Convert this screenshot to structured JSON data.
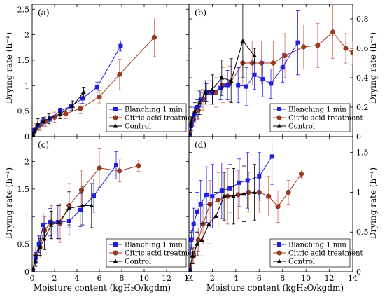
{
  "figure": {
    "y_axis_label": "Drying rate (h⁻¹)",
    "x_axis_label": "Moisture content (kgH₂O/kgdm)",
    "legend_entries": [
      "Blanching 1 min",
      "Citric acid treatment",
      "Control"
    ],
    "colors": {
      "blanching": "#1f1fe0",
      "citric": "#a33a1e",
      "citric_err": "#d26a5a",
      "control": "#000000"
    }
  },
  "chart_data": [
    {
      "type": "line",
      "panel": "(a)",
      "y_side": "left",
      "xlim": [
        0,
        14
      ],
      "ylim": [
        0,
        2.6
      ],
      "xticks": [
        "0",
        "2",
        "4",
        "6",
        "8",
        "10",
        "12",
        "14"
      ],
      "yticks": [
        "0",
        "0.5",
        "1",
        "1.5",
        "2",
        "2.5"
      ],
      "legend_position": "lower-right",
      "series": [
        {
          "name": "Blanching 1 min",
          "key": "blanching",
          "x": [
            0.05,
            0.2,
            0.5,
            1.0,
            1.6,
            2.5,
            3.5,
            4.5,
            5.8,
            7.9
          ],
          "y": [
            0.02,
            0.12,
            0.22,
            0.3,
            0.35,
            0.5,
            0.6,
            0.75,
            0.97,
            1.78
          ],
          "err": [
            0.02,
            0.04,
            0.05,
            0.05,
            0.05,
            0.06,
            0.08,
            0.1,
            0.1,
            0.1
          ]
        },
        {
          "name": "Citric acid treatment",
          "key": "citric",
          "x": [
            0.05,
            0.3,
            0.7,
            1.2,
            2.0,
            3.0,
            4.3,
            6.0,
            7.8,
            10.9
          ],
          "y": [
            0.03,
            0.15,
            0.22,
            0.3,
            0.38,
            0.45,
            0.55,
            0.78,
            1.22,
            1.95
          ],
          "err": [
            0.03,
            0.1,
            0.1,
            0.1,
            0.1,
            0.1,
            0.1,
            0.12,
            0.3,
            0.38
          ]
        },
        {
          "name": "Control",
          "key": "control",
          "x": [
            0.05,
            0.2,
            0.5,
            1.0,
            1.5,
            2.5,
            3.6,
            4.6
          ],
          "y": [
            0.03,
            0.1,
            0.25,
            0.3,
            0.35,
            0.45,
            0.6,
            0.87
          ],
          "err": [
            0.02,
            0.05,
            0.1,
            0.08,
            0.1,
            0.1,
            0.1,
            0.1
          ]
        }
      ]
    },
    {
      "type": "line",
      "panel": "(b)",
      "y_side": "right",
      "xlim": [
        0,
        14
      ],
      "ylim": [
        0,
        0.9
      ],
      "xticks": [
        "0",
        "2",
        "4",
        "6",
        "8",
        "10",
        "12",
        "14"
      ],
      "yticks": [
        "0",
        "0.2",
        "0.4",
        "0.6",
        "0.8"
      ],
      "legend_position": "lower-right",
      "series": [
        {
          "name": "Blanching 1 min",
          "key": "blanching",
          "x": [
            0.05,
            0.2,
            0.45,
            0.7,
            1.0,
            1.5,
            2.0,
            2.7,
            3.3,
            4.2,
            4.9,
            5.6,
            6.3,
            7.0,
            8.0,
            9.3
          ],
          "y": [
            0.01,
            0.08,
            0.15,
            0.2,
            0.25,
            0.3,
            0.3,
            0.33,
            0.35,
            0.35,
            0.34,
            0.42,
            0.39,
            0.36,
            0.47,
            0.64
          ],
          "err": [
            0.01,
            0.04,
            0.05,
            0.05,
            0.05,
            0.06,
            0.08,
            0.08,
            0.1,
            0.12,
            0.13,
            0.1,
            0.12,
            0.1,
            0.1,
            0.22
          ]
        },
        {
          "name": "Citric acid treatment",
          "key": "citric",
          "x": [
            0.1,
            0.4,
            0.8,
            1.2,
            1.7,
            2.3,
            2.9,
            3.5,
            4.6,
            5.4,
            6.2,
            7.2,
            8.2,
            9.8,
            11.0,
            12.3,
            13.4,
            14.0
          ],
          "y": [
            0.03,
            0.12,
            0.18,
            0.25,
            0.3,
            0.3,
            0.35,
            0.36,
            0.5,
            0.5,
            0.5,
            0.5,
            0.55,
            0.61,
            0.62,
            0.71,
            0.6,
            0.57
          ],
          "err": [
            0.02,
            0.05,
            0.06,
            0.07,
            0.08,
            0.1,
            0.12,
            0.12,
            0.15,
            0.15,
            0.15,
            0.15,
            0.15,
            0.15,
            0.15,
            0.18,
            0.1,
            0.08
          ]
        },
        {
          "name": "Control",
          "key": "control",
          "x": [
            0.05,
            0.2,
            0.5,
            0.9,
            1.4,
            2.0,
            2.8,
            3.6,
            4.6,
            5.6
          ],
          "y": [
            0.02,
            0.1,
            0.17,
            0.23,
            0.3,
            0.32,
            0.4,
            0.38,
            0.65,
            0.55
          ],
          "err": [
            0.02,
            0.04,
            0.06,
            0.08,
            0.08,
            0.1,
            0.12,
            0.15,
            0.25,
            0.05
          ]
        }
      ]
    },
    {
      "type": "line",
      "panel": "(c)",
      "y_side": "left",
      "xlim": [
        0,
        14
      ],
      "ylim": [
        0,
        2.45
      ],
      "xticks": [
        "0",
        "2",
        "4",
        "6",
        "8",
        "10",
        "12",
        "14"
      ],
      "yticks": [
        "0",
        "0.5",
        "1",
        "1.5",
        "2"
      ],
      "legend_position": "lower-right",
      "series": [
        {
          "name": "Blanching 1 min",
          "key": "blanching",
          "x": [
            0.05,
            0.3,
            0.6,
            1.0,
            1.6,
            2.3,
            3.3,
            4.3,
            5.5,
            7.5
          ],
          "y": [
            0.03,
            0.25,
            0.5,
            0.85,
            0.9,
            0.9,
            0.92,
            1.12,
            1.38,
            1.93
          ],
          "err": [
            0.02,
            0.1,
            0.15,
            0.2,
            0.25,
            0.3,
            0.25,
            0.3,
            0.3,
            0.25
          ]
        },
        {
          "name": "Citric acid treatment",
          "key": "citric",
          "x": [
            0.05,
            0.3,
            0.7,
            1.1,
            1.7,
            2.5,
            3.3,
            4.4,
            6.0,
            7.8,
            9.5
          ],
          "y": [
            0.05,
            0.3,
            0.45,
            0.75,
            0.9,
            0.88,
            1.2,
            1.48,
            1.88,
            1.83,
            1.92
          ],
          "err": [
            0.03,
            0.15,
            0.2,
            0.25,
            0.3,
            0.35,
            0.4,
            0.35,
            0.35,
            0.2,
            0.1
          ]
        },
        {
          "name": "Control",
          "key": "control",
          "x": [
            0.05,
            0.3,
            0.7,
            1.1,
            1.7,
            2.4,
            3.3,
            4.5,
            5.3
          ],
          "y": [
            0.04,
            0.2,
            0.45,
            0.6,
            0.85,
            0.9,
            1.15,
            1.2,
            1.2
          ],
          "err": [
            0.03,
            0.1,
            0.15,
            0.2,
            0.25,
            0.3,
            0.3,
            0.35,
            0.4
          ]
        }
      ]
    },
    {
      "type": "line",
      "panel": "(d)",
      "y_side": "right",
      "xlim": [
        0,
        14
      ],
      "ylim": [
        0,
        1.7
      ],
      "xticks": [
        "0",
        "2",
        "4",
        "6",
        "8",
        "10",
        "12",
        "14"
      ],
      "yticks": [
        "0",
        "0.5",
        "1",
        "1.5"
      ],
      "legend_position": "lower-right",
      "series": [
        {
          "name": "Blanching 1 min",
          "key": "blanching",
          "x": [
            0.05,
            0.2,
            0.4,
            0.7,
            1.0,
            1.5,
            2.0,
            2.8,
            3.5,
            4.3,
            5.0,
            6.0,
            7.1
          ],
          "y": [
            0.03,
            0.4,
            0.6,
            0.75,
            0.85,
            0.97,
            0.95,
            1.02,
            1.05,
            1.12,
            1.15,
            1.2,
            1.45
          ],
          "err": [
            0.02,
            0.12,
            0.2,
            0.25,
            0.3,
            0.35,
            0.4,
            0.35,
            0.3,
            0.3,
            0.35,
            0.3,
            0.35
          ]
        },
        {
          "name": "Citric acid treatment",
          "key": "citric",
          "x": [
            0.1,
            0.4,
            0.8,
            1.2,
            1.8,
            2.5,
            3.3,
            4.2,
            5.1,
            6.0,
            6.8,
            7.6,
            8.5,
            9.6
          ],
          "y": [
            0.05,
            0.2,
            0.4,
            0.6,
            0.85,
            0.9,
            0.95,
            0.97,
            1.0,
            1.0,
            0.95,
            0.82,
            1.0,
            1.23
          ],
          "err": [
            0.03,
            0.1,
            0.15,
            0.25,
            0.3,
            0.35,
            0.35,
            0.3,
            0.25,
            0.25,
            0.25,
            0.2,
            0.15,
            0.05
          ]
        },
        {
          "name": "Control",
          "key": "control",
          "x": [
            0.05,
            0.3,
            0.7,
            1.1,
            1.7,
            2.3,
            3.0,
            3.8,
            4.7,
            5.6
          ],
          "y": [
            0.03,
            0.2,
            0.35,
            0.4,
            0.6,
            0.7,
            0.95,
            0.95,
            0.98,
            1.0
          ],
          "err": [
            0.02,
            0.1,
            0.15,
            0.2,
            0.25,
            0.3,
            0.3,
            0.35,
            0.35,
            0.35
          ]
        }
      ]
    }
  ]
}
